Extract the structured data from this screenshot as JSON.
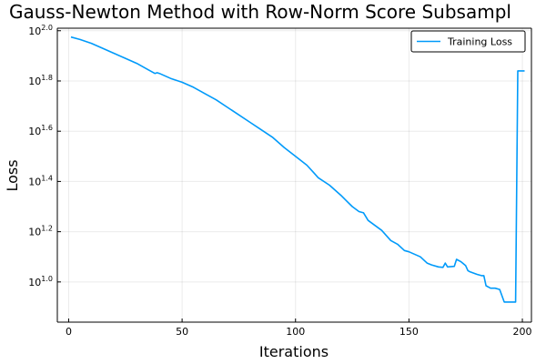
{
  "chart_data": {
    "type": "line",
    "title": "Gauss-Newton Method with Row-Norm Score Subsampl",
    "xlabel": "Iterations",
    "ylabel": "Loss",
    "xlim": [
      -5,
      204
    ],
    "ylim": [
      0.84,
      2.01
    ],
    "y_scale": "log10",
    "grid": true,
    "legend_position": "top-right",
    "x_ticks": [
      {
        "value": 0,
        "label": "0"
      },
      {
        "value": 50,
        "label": "50"
      },
      {
        "value": 100,
        "label": "100"
      },
      {
        "value": 150,
        "label": "150"
      },
      {
        "value": 200,
        "label": "200"
      }
    ],
    "y_ticks": [
      {
        "value": 1.0,
        "base": "10",
        "exp": "1.0"
      },
      {
        "value": 1.2,
        "base": "10",
        "exp": "1.2"
      },
      {
        "value": 1.4,
        "base": "10",
        "exp": "1.4"
      },
      {
        "value": 1.6,
        "base": "10",
        "exp": "1.6"
      },
      {
        "value": 1.8,
        "base": "10",
        "exp": "1.8"
      },
      {
        "value": 2.0,
        "base": "10",
        "exp": "2.0"
      }
    ],
    "series": [
      {
        "name": "Training Loss",
        "color": "#009AFA",
        "x": [
          1,
          5,
          10,
          15,
          20,
          25,
          30,
          35,
          38,
          39,
          40,
          45,
          50,
          55,
          60,
          65,
          70,
          75,
          80,
          85,
          90,
          95,
          100,
          105,
          108,
          110,
          115,
          120,
          125,
          128,
          130,
          132,
          135,
          138,
          140,
          142,
          145,
          148,
          150,
          155,
          158,
          160,
          163,
          165,
          166,
          167,
          170,
          171,
          173,
          175,
          176,
          177,
          180,
          182,
          183,
          184,
          186,
          188,
          190,
          191,
          192,
          193,
          194,
          195,
          196,
          197,
          198,
          199,
          200,
          201
        ],
        "y": [
          1.975,
          1.965,
          1.95,
          1.93,
          1.91,
          1.89,
          1.87,
          1.845,
          1.83,
          1.833,
          1.83,
          1.81,
          1.795,
          1.775,
          1.75,
          1.725,
          1.695,
          1.665,
          1.635,
          1.605,
          1.575,
          1.535,
          1.5,
          1.465,
          1.435,
          1.415,
          1.385,
          1.345,
          1.3,
          1.28,
          1.275,
          1.245,
          1.225,
          1.205,
          1.185,
          1.165,
          1.15,
          1.125,
          1.12,
          1.1,
          1.075,
          1.068,
          1.06,
          1.058,
          1.075,
          1.06,
          1.062,
          1.09,
          1.08,
          1.065,
          1.045,
          1.04,
          1.03,
          1.025,
          1.025,
          0.985,
          0.975,
          0.975,
          0.97,
          0.945,
          0.92,
          0.92,
          0.92,
          0.92,
          0.92,
          0.92,
          1.84,
          1.84,
          1.84,
          1.84
        ]
      }
    ]
  }
}
